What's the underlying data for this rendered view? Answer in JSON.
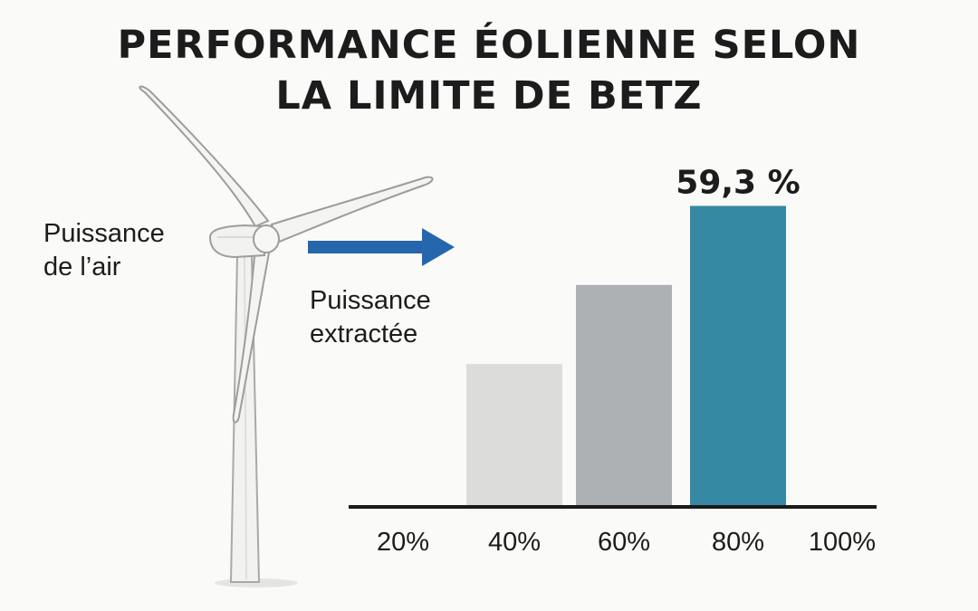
{
  "title_lines": [
    "PERFORMANCE ÉOLIENNE SELON",
    "LA LIMITE DE BETZ"
  ],
  "labels": {
    "air_power": [
      "Puissance",
      "de l’air"
    ],
    "extracted_power": [
      "Puissance",
      "extractée"
    ]
  },
  "icons": {
    "turbine": "wind-turbine-icon",
    "arrow": "arrow-right-icon"
  },
  "colors": {
    "arrow": "#2566ad",
    "axis": "#1a1a1a"
  },
  "chart_data": {
    "type": "bar",
    "x_ticks": [
      "20%",
      "40%",
      "60%",
      "80%",
      "100%"
    ],
    "bars": [
      {
        "category": "40%",
        "value": 38,
        "color": "#dcdcda"
      },
      {
        "category": "60%",
        "value": 59,
        "color": "#aeb1b4"
      },
      {
        "category": "80%",
        "value": 80,
        "color": "#3589a3",
        "label": "59,3 %"
      }
    ],
    "ylim": [
      0,
      83
    ],
    "grid": false,
    "legend": "none",
    "title": "PERFORMANCE ÉOLIENNE SELON LA LIMITE DE BETZ",
    "xlabel": "",
    "ylabel": ""
  }
}
